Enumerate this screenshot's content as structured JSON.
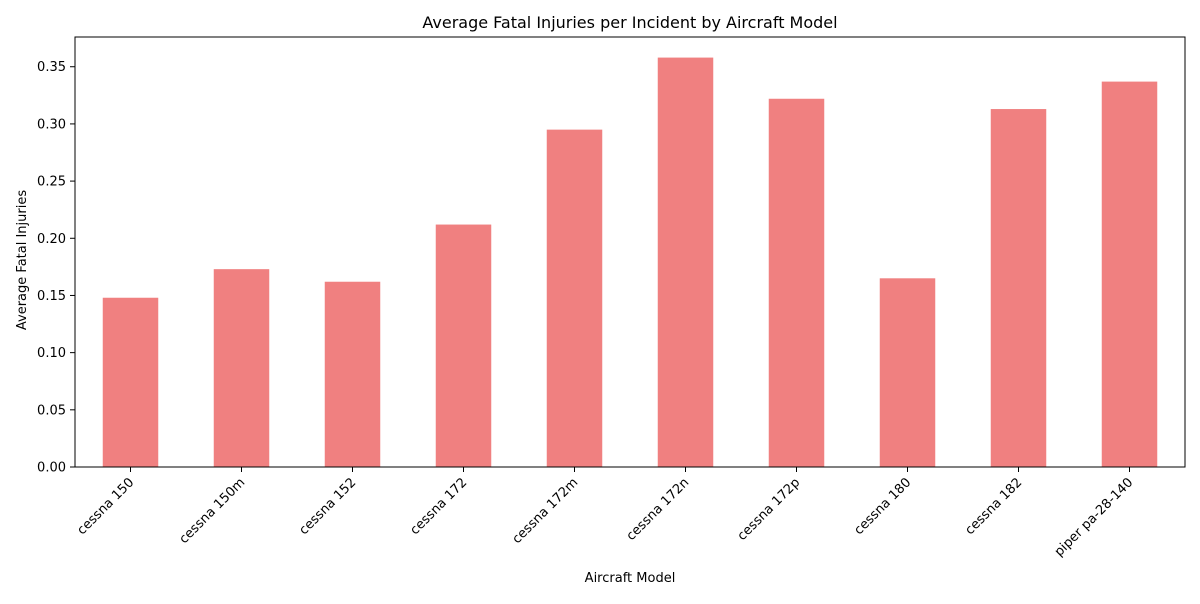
{
  "chart_data": {
    "type": "bar",
    "title": "Average Fatal Injuries per Incident by Aircraft Model",
    "xlabel": "Aircraft Model",
    "ylabel": "Average Fatal Injuries",
    "categories": [
      "cessna 150",
      "cessna 150m",
      "cessna 152",
      "cessna 172",
      "cessna 172m",
      "cessna 172n",
      "cessna 172p",
      "cessna 180",
      "cessna 182",
      "piper pa-28-140"
    ],
    "values": [
      0.148,
      0.173,
      0.162,
      0.212,
      0.295,
      0.358,
      0.322,
      0.165,
      0.313,
      0.337
    ],
    "ylim": [
      0,
      0.376
    ],
    "yticks": [
      "0.00",
      "0.05",
      "0.10",
      "0.15",
      "0.20",
      "0.25",
      "0.30",
      "0.35"
    ],
    "bar_color": "#f08080",
    "grid": false,
    "legend": "none"
  }
}
